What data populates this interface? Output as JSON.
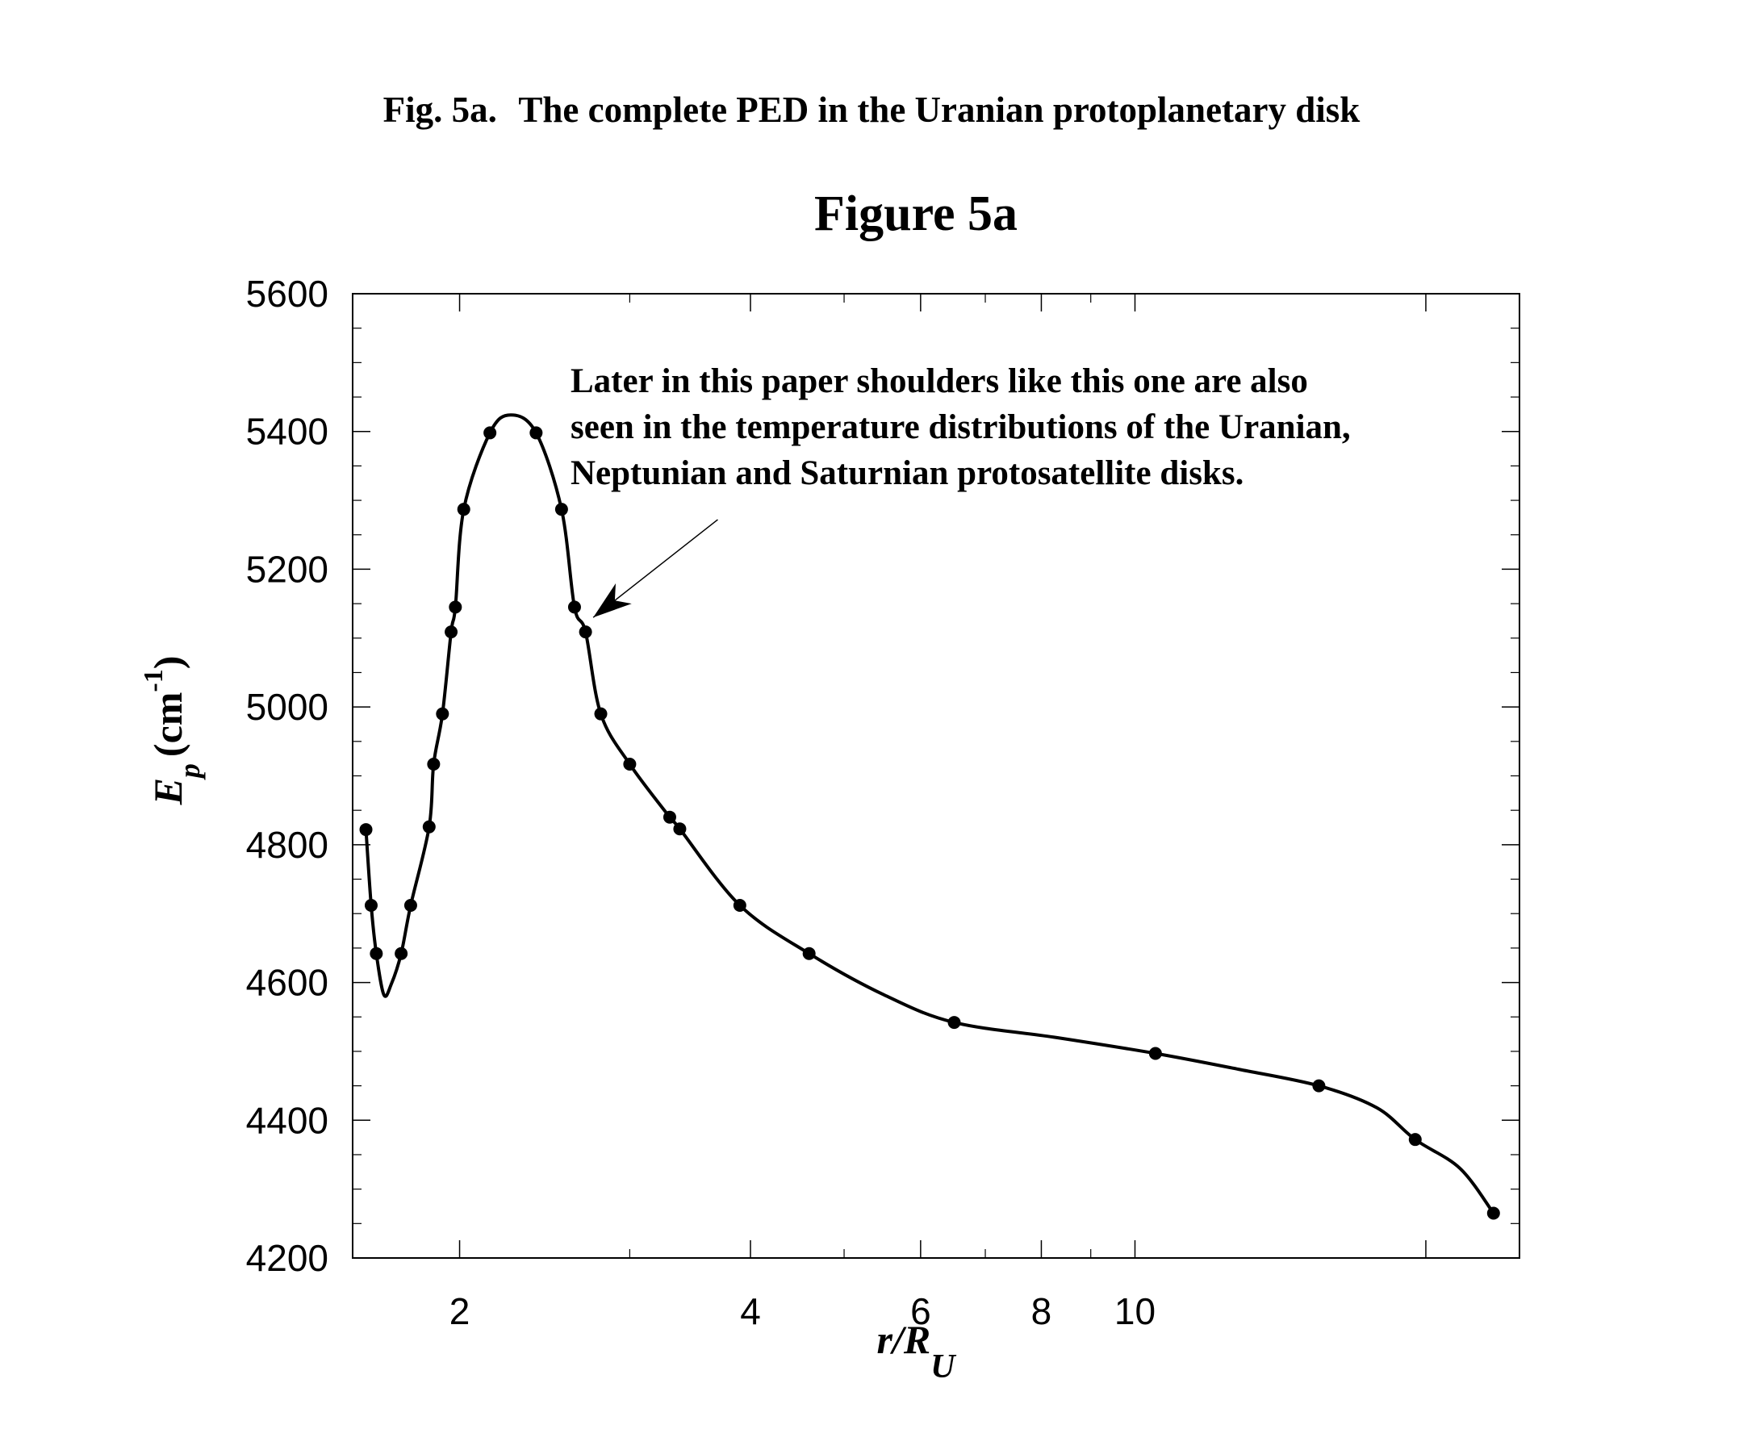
{
  "caption": {
    "label": "Fig. 5a.",
    "text": "The complete PED in the Uranian protoplanetary disk"
  },
  "chart_data": {
    "type": "line",
    "title": "Figure 5a",
    "xlabel": {
      "main": "r/R",
      "sub": "U"
    },
    "ylabel": {
      "main": "E",
      "sub": "p",
      "unit_open": "(cm",
      "unit_sup": "-1",
      "unit_close": ")"
    },
    "x_scale": "log",
    "xlim": [
      1.55,
      25
    ],
    "ylim": [
      4200,
      5600
    ],
    "x_ticks": [
      2,
      4,
      6,
      8,
      10
    ],
    "y_ticks": [
      4200,
      4400,
      4600,
      4800,
      5000,
      5200,
      5400,
      5600
    ],
    "grid": false,
    "series": [
      {
        "points": [
          [
            1.6,
            4822
          ],
          [
            1.62,
            4712
          ],
          [
            1.64,
            4642
          ],
          [
            1.74,
            4642
          ],
          [
            1.78,
            4712
          ],
          [
            1.86,
            4826
          ],
          [
            1.88,
            4917
          ],
          [
            1.92,
            4990
          ],
          [
            1.96,
            5109
          ],
          [
            1.98,
            5145
          ],
          [
            2.02,
            5287
          ],
          [
            2.15,
            5398
          ],
          [
            2.4,
            5398
          ],
          [
            2.55,
            5287
          ],
          [
            2.63,
            5145
          ],
          [
            2.7,
            5109
          ],
          [
            2.8,
            4990
          ],
          [
            3.0,
            4917
          ],
          [
            3.3,
            4840
          ],
          [
            3.38,
            4823
          ],
          [
            3.9,
            4712
          ],
          [
            4.6,
            4642
          ],
          [
            6.5,
            4542
          ],
          [
            10.5,
            4497
          ],
          [
            15.5,
            4450
          ],
          [
            19.5,
            4372
          ],
          [
            23.5,
            4265
          ]
        ],
        "curve": [
          [
            1.6,
            4822
          ],
          [
            1.62,
            4712
          ],
          [
            1.64,
            4642
          ],
          [
            1.67,
            4582
          ],
          [
            1.7,
            4598
          ],
          [
            1.74,
            4642
          ],
          [
            1.78,
            4712
          ],
          [
            1.86,
            4826
          ],
          [
            1.88,
            4917
          ],
          [
            1.92,
            4990
          ],
          [
            1.96,
            5109
          ],
          [
            1.98,
            5145
          ],
          [
            2.02,
            5287
          ],
          [
            2.15,
            5398
          ],
          [
            2.26,
            5424
          ],
          [
            2.4,
            5398
          ],
          [
            2.55,
            5287
          ],
          [
            2.63,
            5145
          ],
          [
            2.7,
            5109
          ],
          [
            2.8,
            4990
          ],
          [
            3.0,
            4917
          ],
          [
            3.3,
            4840
          ],
          [
            3.38,
            4823
          ],
          [
            3.9,
            4712
          ],
          [
            4.6,
            4642
          ],
          [
            5.5,
            4582
          ],
          [
            6.5,
            4542
          ],
          [
            8.3,
            4520
          ],
          [
            10.5,
            4497
          ],
          [
            12.8,
            4474
          ],
          [
            15.5,
            4450
          ],
          [
            17.8,
            4418
          ],
          [
            19.5,
            4372
          ],
          [
            21.7,
            4330
          ],
          [
            23.5,
            4265
          ]
        ]
      }
    ],
    "annotation": {
      "lines": [
        "Later in this paper shoulders like this one are also",
        "seen in the temperature distributions of the Uranian,",
        "Neptunian and Saturnian protosatellite disks."
      ],
      "arrow_from": [
        3.7,
        5272
      ],
      "arrow_to": [
        2.75,
        5130
      ]
    }
  }
}
